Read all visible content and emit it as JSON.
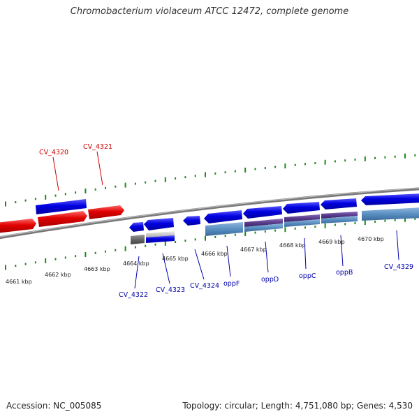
{
  "title": "Chromobacterium violaceum ATCC 12472, complete genome",
  "accession": "Accession: NC_005085",
  "stats": "Topology: circular; Length: 4,751,080 bp; Genes: 4,530",
  "colors": {
    "forward_gene": "#e00000",
    "forward_cds": "#0000d8",
    "reverse_cds": "#0000e0",
    "reverse_gene": "#5a8fc2",
    "operon": "#5a3c8c",
    "pseudo": "#666666",
    "forward_label": "#cc0000",
    "reverse_label": "#0000aa",
    "tick": "#1a8a1a",
    "backbone": "#888888"
  },
  "ruler_labels": [
    "4661 kbp",
    "4662 kbp",
    "4663 kbp",
    "4664 kbp",
    "4665 kbp",
    "4666 kbp",
    "4667 kbp",
    "4668 kbp",
    "4669 kbp",
    "4670 kbp"
  ],
  "forward_features": [
    {
      "name": "CV_4320",
      "label": "CV_4320"
    },
    {
      "name": "CV_4321",
      "label": "CV_4321"
    }
  ],
  "reverse_features": [
    {
      "name": "CV_4322",
      "label": "CV_4322"
    },
    {
      "name": "CV_4323",
      "label": "CV_4323"
    },
    {
      "name": "CV_4324",
      "label": "CV_4324"
    },
    {
      "name": "oppF",
      "label": "oppF"
    },
    {
      "name": "oppD",
      "label": "oppD"
    },
    {
      "name": "oppC",
      "label": "oppC"
    },
    {
      "name": "oppB",
      "label": "oppB"
    },
    {
      "name": "CV_4329",
      "label": "CV_4329"
    }
  ]
}
